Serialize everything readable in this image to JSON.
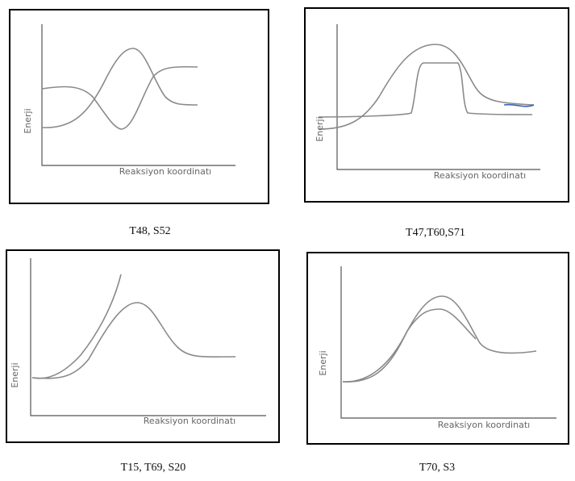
{
  "panels": [
    {
      "y_label": "Enerji",
      "x_label": "Reaksiyon koordinatı",
      "caption": "T48, S52"
    },
    {
      "y_label": "Enerji",
      "x_label": "Reaksiyon koordinatı",
      "caption": "T47,T60,S71"
    },
    {
      "y_label": "Enerji",
      "x_label": "Reaksiyon koordinatı",
      "caption": "T15, T69, S20"
    },
    {
      "y_label": "Enerji",
      "x_label": "Reaksiyon koordinatı",
      "caption": "T70, S3"
    }
  ]
}
